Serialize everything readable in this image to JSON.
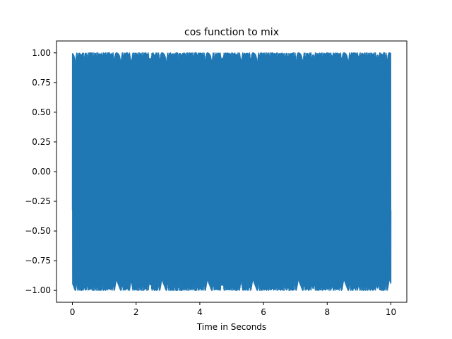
{
  "chart_data": {
    "type": "line",
    "title": "cos function to mix",
    "xlabel": "Time in Seconds",
    "ylabel": "",
    "xlim": [
      -0.5,
      10.5
    ],
    "ylim": [
      -1.1,
      1.1
    ],
    "x_ticks": [
      0,
      2,
      4,
      6,
      8,
      10
    ],
    "x_tick_labels": [
      "0",
      "2",
      "4",
      "6",
      "8",
      "10"
    ],
    "y_ticks": [
      1.0,
      0.75,
      0.5,
      0.25,
      0.0,
      -0.25,
      -0.5,
      -0.75,
      -1.0
    ],
    "y_tick_labels": [
      "1.00",
      "0.75",
      "0.50",
      "0.25",
      "0.00",
      "−0.25",
      "−0.50",
      "−0.75",
      "−1.00"
    ],
    "grid": false,
    "legend": "none",
    "series": [
      {
        "color": "#1f77b4",
        "x_range": [
          0,
          10
        ],
        "y_min": -1.0,
        "y_max": 1.0,
        "description": "dense high-frequency cosine signal filling the range -1 to 1"
      }
    ]
  }
}
